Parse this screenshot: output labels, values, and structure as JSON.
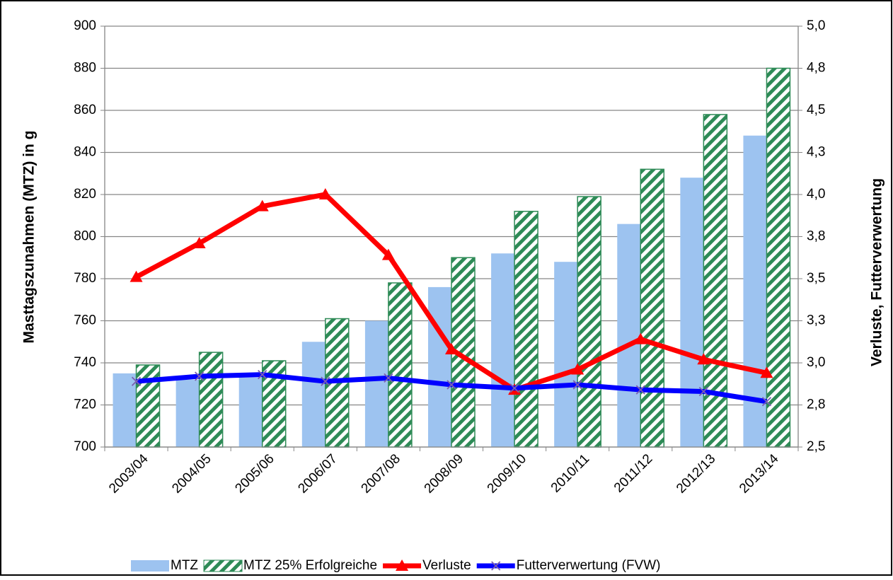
{
  "chart_data": {
    "type": "bar-line",
    "y_label": "Masttagszunahmen (MTZ) in g",
    "y2_label": "Verluste, Futterverwertung",
    "categories": [
      "2003/04",
      "2004/05",
      "2005/06",
      "2006/07",
      "2007/08",
      "2008/09",
      "2009/10",
      "2010/11",
      "2011/12",
      "2012/13",
      "2013/14"
    ],
    "series": [
      {
        "name": "MTZ",
        "type": "bar",
        "color": "#9dc3f0",
        "values": [
          735,
          732,
          733,
          750,
          760,
          776,
          792,
          788,
          806,
          828,
          848
        ]
      },
      {
        "name": "MTZ 25% Erfolgreiche",
        "type": "bar",
        "color": "#2e8b57",
        "pattern": "hatch",
        "values": [
          739,
          745,
          741,
          761,
          778,
          790,
          812,
          819,
          832,
          858,
          880
        ]
      },
      {
        "name": "Verluste",
        "type": "line",
        "axis": "y2",
        "color": "#ff0000",
        "marker": "triangle",
        "values": [
          3.51,
          3.71,
          3.93,
          4.0,
          3.64,
          3.08,
          2.84,
          2.96,
          3.14,
          3.02,
          2.94
        ]
      },
      {
        "name": "Futterverwertung (FVW)",
        "type": "line",
        "axis": "y2",
        "color": "#0000ff",
        "marker": "x",
        "values": [
          2.89,
          2.92,
          2.93,
          2.89,
          2.91,
          2.87,
          2.85,
          2.87,
          2.84,
          2.83,
          2.77
        ]
      }
    ],
    "ylim": [
      700,
      900
    ],
    "yticks": [
      700,
      720,
      740,
      760,
      780,
      800,
      820,
      840,
      860,
      880,
      900
    ],
    "y2lim": [
      2.5,
      5.0
    ],
    "y2ticks": [
      {
        "value": 2.5,
        "label": "2,5"
      },
      {
        "value": 2.75,
        "label": "2,8"
      },
      {
        "value": 3.0,
        "label": "3,0"
      },
      {
        "value": 3.25,
        "label": "3,3"
      },
      {
        "value": 3.5,
        "label": "3,5"
      },
      {
        "value": 3.75,
        "label": "3,8"
      },
      {
        "value": 4.0,
        "label": "4,0"
      },
      {
        "value": 4.25,
        "label": "4,3"
      },
      {
        "value": 4.5,
        "label": "4,5"
      },
      {
        "value": 4.75,
        "label": "4,8"
      },
      {
        "value": 5.0,
        "label": "5,0"
      }
    ],
    "grid": true,
    "legend": "bottom"
  }
}
